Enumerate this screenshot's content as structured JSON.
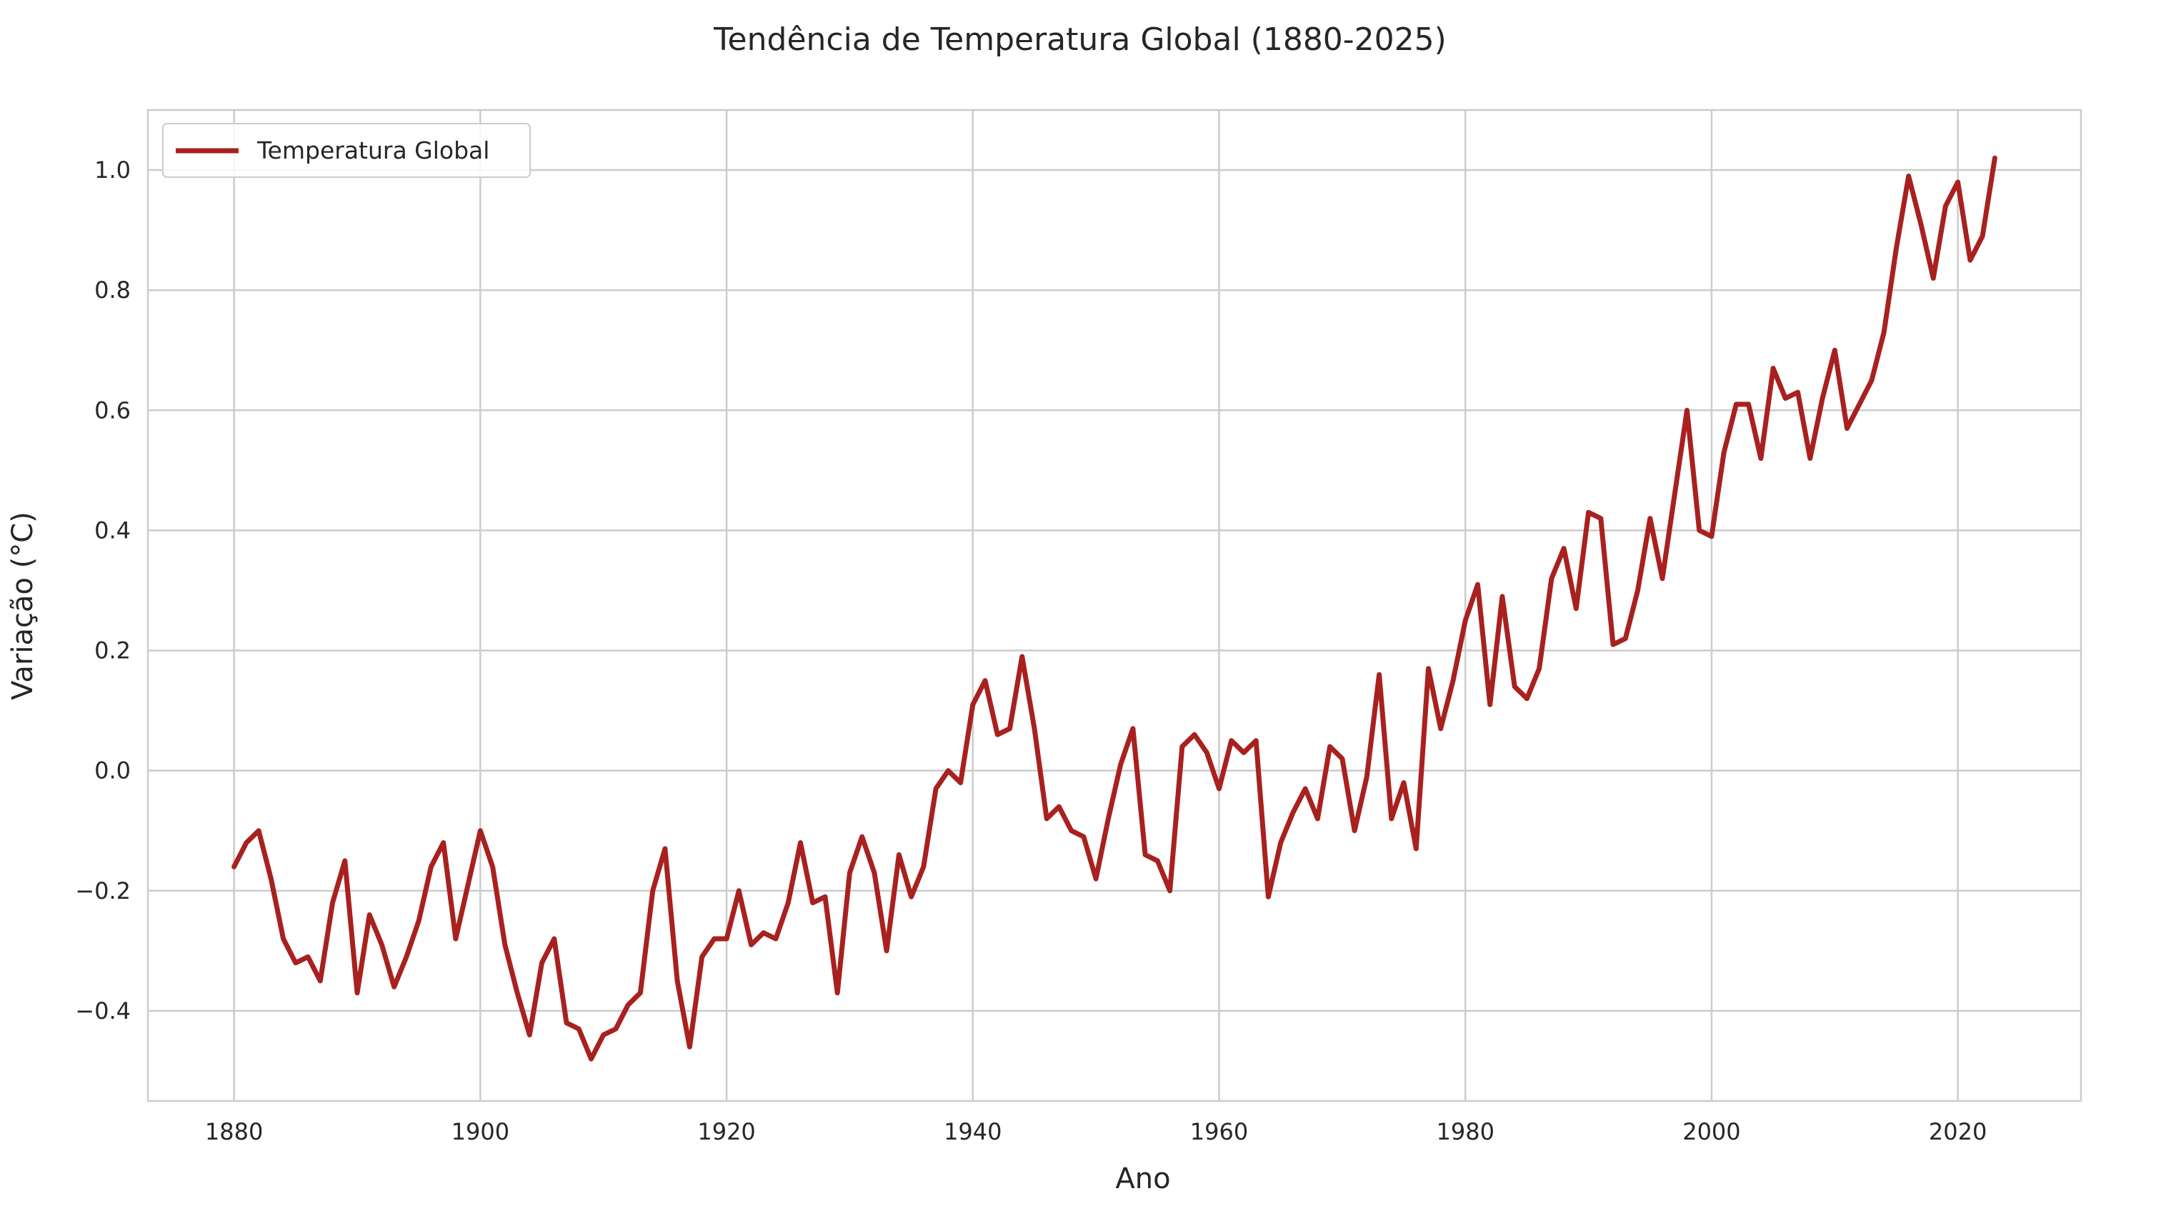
{
  "chart_data": {
    "type": "line",
    "title": "Tendência de Temperatura Global (1880-2025)",
    "xlabel": "Ano",
    "ylabel": "Variação (°C)",
    "xlim": [
      1873,
      2030
    ],
    "ylim": [
      -0.55,
      1.1
    ],
    "x_ticks": [
      1880,
      1900,
      1920,
      1940,
      1960,
      1980,
      2000,
      2020
    ],
    "y_ticks": [
      -0.4,
      -0.2,
      0.0,
      0.2,
      0.4,
      0.6,
      0.8,
      1.0
    ],
    "y_tick_labels": [
      "−0.4",
      "−0.2",
      "0.0",
      "0.2",
      "0.4",
      "0.6",
      "0.8",
      "1.0"
    ],
    "grid": true,
    "legend_position": "top-left",
    "series": [
      {
        "name": "Temperatura Global",
        "color": "#a8211f",
        "x": [
          1880,
          1881,
          1882,
          1883,
          1884,
          1885,
          1886,
          1887,
          1888,
          1889,
          1890,
          1891,
          1892,
          1893,
          1894,
          1895,
          1896,
          1897,
          1898,
          1899,
          1900,
          1901,
          1902,
          1903,
          1904,
          1905,
          1906,
          1907,
          1908,
          1909,
          1910,
          1911,
          1912,
          1913,
          1914,
          1915,
          1916,
          1917,
          1918,
          1919,
          1920,
          1921,
          1922,
          1923,
          1924,
          1925,
          1926,
          1927,
          1928,
          1929,
          1930,
          1931,
          1932,
          1933,
          1934,
          1935,
          1936,
          1937,
          1938,
          1939,
          1940,
          1941,
          1942,
          1943,
          1944,
          1945,
          1946,
          1947,
          1948,
          1949,
          1950,
          1951,
          1952,
          1953,
          1954,
          1955,
          1956,
          1957,
          1958,
          1959,
          1960,
          1961,
          1962,
          1963,
          1964,
          1965,
          1966,
          1967,
          1968,
          1969,
          1970,
          1971,
          1972,
          1973,
          1974,
          1975,
          1976,
          1977,
          1978,
          1979,
          1980,
          1981,
          1982,
          1983,
          1984,
          1985,
          1986,
          1987,
          1988,
          1989,
          1990,
          1991,
          1992,
          1993,
          1994,
          1995,
          1996,
          1997,
          1998,
          1999,
          2000,
          2001,
          2002,
          2003,
          2004,
          2005,
          2006,
          2007,
          2008,
          2009,
          2010,
          2011,
          2012,
          2013,
          2014,
          2015,
          2016,
          2017,
          2018,
          2019,
          2020,
          2021,
          2022,
          2023
        ],
        "values": [
          -0.16,
          -0.12,
          -0.1,
          -0.18,
          -0.28,
          -0.32,
          -0.31,
          -0.35,
          -0.22,
          -0.15,
          -0.37,
          -0.24,
          -0.29,
          -0.36,
          -0.31,
          -0.25,
          -0.16,
          -0.12,
          -0.28,
          -0.19,
          -0.1,
          -0.16,
          -0.29,
          -0.37,
          -0.44,
          -0.32,
          -0.28,
          -0.42,
          -0.43,
          -0.48,
          -0.44,
          -0.43,
          -0.39,
          -0.37,
          -0.2,
          -0.13,
          -0.35,
          -0.46,
          -0.31,
          -0.28,
          -0.28,
          -0.2,
          -0.29,
          -0.27,
          -0.28,
          -0.22,
          -0.12,
          -0.22,
          -0.21,
          -0.37,
          -0.17,
          -0.11,
          -0.17,
          -0.3,
          -0.14,
          -0.21,
          -0.16,
          -0.03,
          0.0,
          -0.02,
          0.11,
          0.15,
          0.06,
          0.07,
          0.19,
          0.07,
          -0.08,
          -0.06,
          -0.1,
          -0.11,
          -0.18,
          -0.08,
          0.01,
          0.07,
          -0.14,
          -0.15,
          -0.2,
          0.04,
          0.06,
          0.03,
          -0.03,
          0.05,
          0.03,
          0.05,
          -0.21,
          -0.12,
          -0.07,
          -0.03,
          -0.08,
          0.04,
          0.02,
          -0.1,
          -0.01,
          0.16,
          -0.08,
          -0.02,
          -0.13,
          0.17,
          0.07,
          0.15,
          0.25,
          0.31,
          0.11,
          0.29,
          0.14,
          0.12,
          0.17,
          0.32,
          0.37,
          0.27,
          0.43,
          0.42,
          0.21,
          0.22,
          0.3,
          0.42,
          0.32,
          0.46,
          0.6,
          0.4,
          0.39,
          0.53,
          0.61,
          0.61,
          0.52,
          0.67,
          0.62,
          0.63,
          0.52,
          0.62,
          0.7,
          0.57,
          0.61,
          0.65,
          0.73,
          0.87,
          0.99,
          0.91,
          0.82,
          0.94,
          0.98,
          0.85,
          0.89,
          1.02
        ]
      }
    ]
  }
}
